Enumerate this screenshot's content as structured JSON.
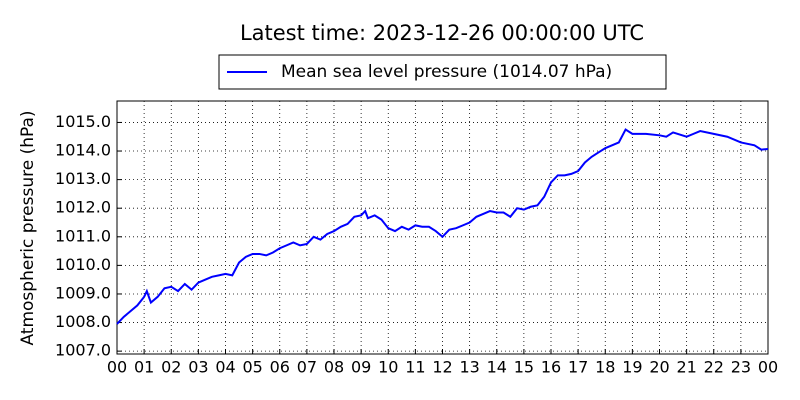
{
  "chart_data": {
    "type": "line",
    "title": "Latest time: 2023-12-26 00:00:00 UTC",
    "ylabel": "Atmospheric pressure (hPa)",
    "x": [
      0,
      0.25,
      0.5,
      0.75,
      1,
      1.1,
      1.25,
      1.5,
      1.75,
      2,
      2.25,
      2.5,
      2.75,
      3,
      3.25,
      3.5,
      3.75,
      4,
      4.25,
      4.5,
      4.75,
      5,
      5.25,
      5.5,
      5.75,
      6,
      6.25,
      6.5,
      6.75,
      7,
      7.25,
      7.5,
      7.75,
      8,
      8.25,
      8.5,
      8.75,
      9,
      9.15,
      9.25,
      9.5,
      9.75,
      10,
      10.25,
      10.5,
      10.75,
      11,
      11.25,
      11.5,
      11.75,
      12,
      12.25,
      12.5,
      12.75,
      13,
      13.25,
      13.5,
      13.75,
      14,
      14.25,
      14.5,
      14.75,
      15,
      15.25,
      15.5,
      15.75,
      16,
      16.25,
      16.5,
      16.75,
      17,
      17.25,
      17.5,
      17.75,
      18,
      18.25,
      18.5,
      18.75,
      19,
      19.5,
      20,
      20.25,
      20.5,
      21,
      21.25,
      21.5,
      22,
      22.5,
      23,
      23.5,
      23.75,
      24
    ],
    "series": [
      {
        "name": "Mean sea level pressure (1014.07 hPa)",
        "color": "#0000ff",
        "values": [
          1007.95,
          1008.2,
          1008.4,
          1008.6,
          1008.9,
          1009.1,
          1008.7,
          1008.9,
          1009.2,
          1009.25,
          1009.1,
          1009.35,
          1009.15,
          1009.4,
          1009.5,
          1009.6,
          1009.65,
          1009.7,
          1009.65,
          1010.1,
          1010.3,
          1010.4,
          1010.4,
          1010.35,
          1010.45,
          1010.6,
          1010.7,
          1010.8,
          1010.7,
          1010.75,
          1011.0,
          1010.9,
          1011.1,
          1011.2,
          1011.35,
          1011.45,
          1011.7,
          1011.75,
          1011.9,
          1011.65,
          1011.75,
          1011.6,
          1011.3,
          1011.2,
          1011.35,
          1011.25,
          1011.4,
          1011.35,
          1011.35,
          1011.2,
          1011.0,
          1011.25,
          1011.3,
          1011.4,
          1011.5,
          1011.7,
          1011.8,
          1011.9,
          1011.85,
          1011.85,
          1011.7,
          1012.0,
          1011.95,
          1012.05,
          1012.1,
          1012.4,
          1012.9,
          1013.15,
          1013.15,
          1013.2,
          1013.3,
          1013.6,
          1013.8,
          1013.95,
          1014.1,
          1014.2,
          1014.3,
          1014.75,
          1014.6,
          1014.6,
          1014.55,
          1014.5,
          1014.65,
          1014.5,
          1014.6,
          1014.7,
          1014.6,
          1014.5,
          1014.3,
          1014.2,
          1014.05,
          1014.07
        ]
      }
    ],
    "xlim": [
      0,
      24
    ],
    "xticks": [
      {
        "value": 0,
        "label": "00"
      },
      {
        "value": 1,
        "label": "01"
      },
      {
        "value": 2,
        "label": "02"
      },
      {
        "value": 3,
        "label": "03"
      },
      {
        "value": 4,
        "label": "04"
      },
      {
        "value": 5,
        "label": "05"
      },
      {
        "value": 6,
        "label": "06"
      },
      {
        "value": 7,
        "label": "07"
      },
      {
        "value": 8,
        "label": "08"
      },
      {
        "value": 9,
        "label": "09"
      },
      {
        "value": 10,
        "label": "10"
      },
      {
        "value": 11,
        "label": "11"
      },
      {
        "value": 12,
        "label": "12"
      },
      {
        "value": 13,
        "label": "13"
      },
      {
        "value": 14,
        "label": "14"
      },
      {
        "value": 15,
        "label": "15"
      },
      {
        "value": 16,
        "label": "16"
      },
      {
        "value": 17,
        "label": "17"
      },
      {
        "value": 18,
        "label": "18"
      },
      {
        "value": 19,
        "label": "19"
      },
      {
        "value": 20,
        "label": "20"
      },
      {
        "value": 21,
        "label": "21"
      },
      {
        "value": 22,
        "label": "22"
      },
      {
        "value": 23,
        "label": "23"
      },
      {
        "value": 24,
        "label": "00"
      }
    ],
    "ylim": [
      1006.9,
      1015.75
    ],
    "yticks": [
      {
        "value": 1007,
        "label": "1007.0"
      },
      {
        "value": 1008,
        "label": "1008.0"
      },
      {
        "value": 1009,
        "label": "1009.0"
      },
      {
        "value": 1010,
        "label": "1010.0"
      },
      {
        "value": 1011,
        "label": "1011.0"
      },
      {
        "value": 1012,
        "label": "1012.0"
      },
      {
        "value": 1013,
        "label": "1013.0"
      },
      {
        "value": 1014,
        "label": "1014.0"
      },
      {
        "value": 1015,
        "label": "1015.0"
      }
    ],
    "grid": true,
    "legend": "top"
  }
}
